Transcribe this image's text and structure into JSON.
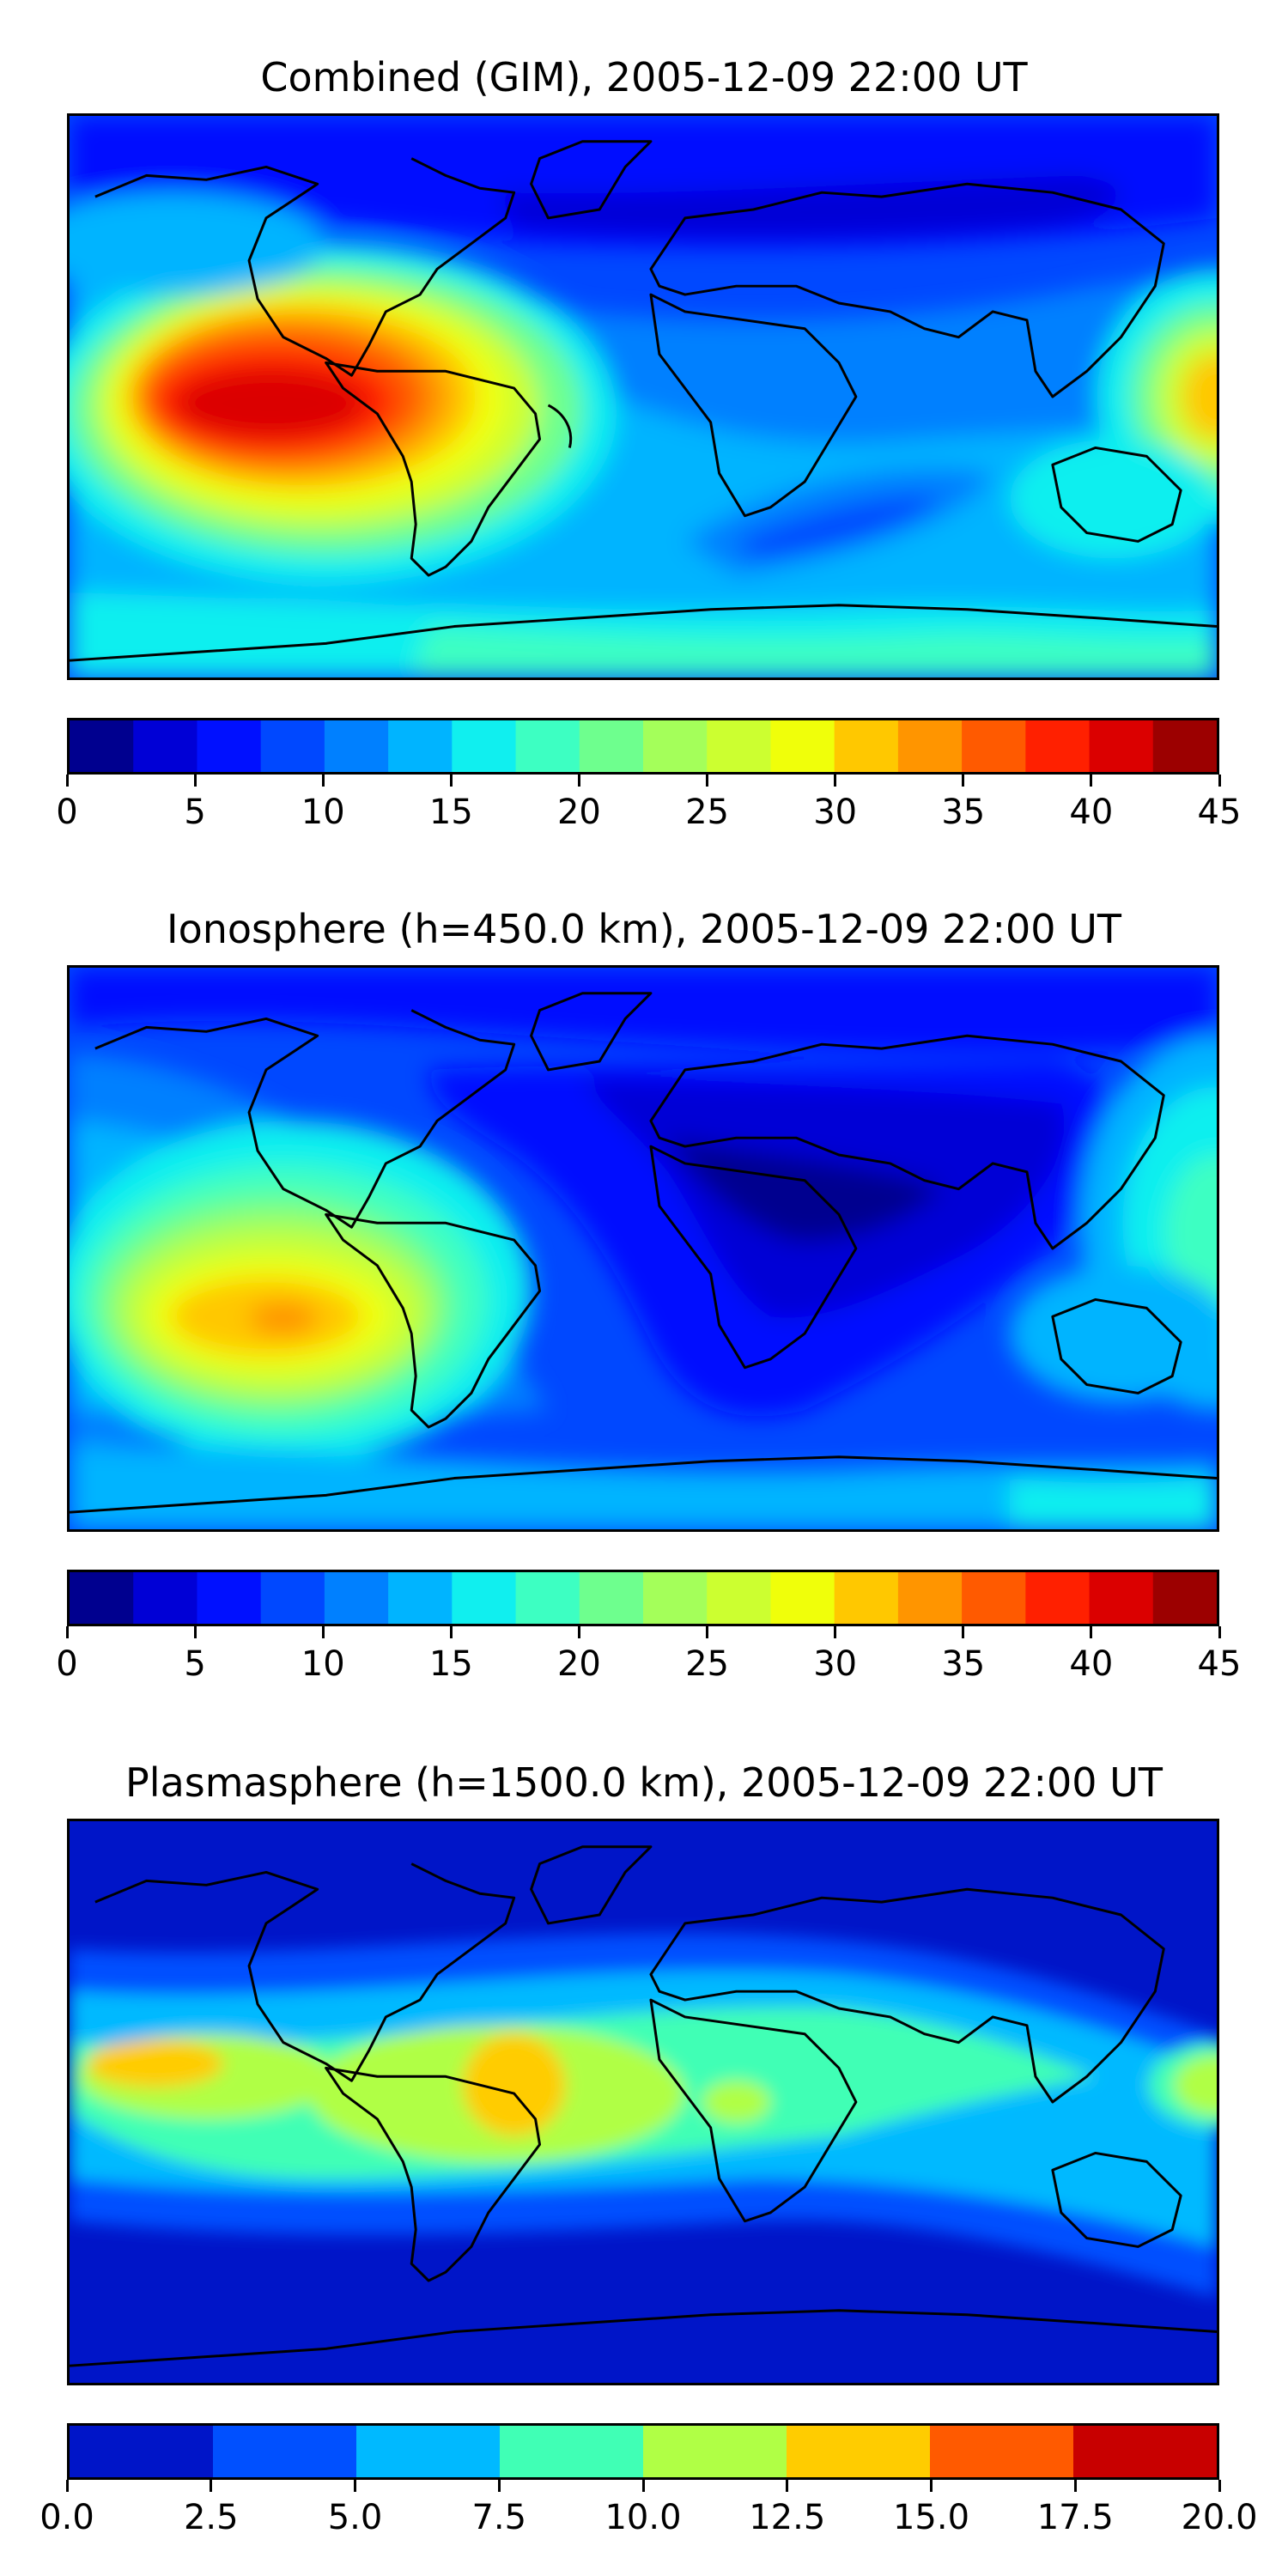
{
  "maps": [
    {
      "title": "Combined (GIM), 2005-12-09 22:00 UT",
      "colorbar": {
        "min": 0,
        "max": 45,
        "step": 2.5,
        "tick_labels": [
          "0",
          "5",
          "10",
          "15",
          "20",
          "25",
          "30",
          "35",
          "40",
          "45"
        ],
        "colors": [
          "#00008f",
          "#0000d6",
          "#0010ff",
          "#0048ff",
          "#0080ff",
          "#00b4ff",
          "#10efef",
          "#3dffc2",
          "#6eff8e",
          "#a4ff5a",
          "#ccff30",
          "#f0ff0a",
          "#ffc800",
          "#ff9500",
          "#ff5a00",
          "#ff2000",
          "#db0000",
          "#9c0000"
        ]
      }
    },
    {
      "title": "Ionosphere  (h=450.0 km), 2005-12-09 22:00 UT",
      "colorbar": {
        "min": 0,
        "max": 45,
        "step": 2.5,
        "tick_labels": [
          "0",
          "5",
          "10",
          "15",
          "20",
          "25",
          "30",
          "35",
          "40",
          "45"
        ],
        "colors": [
          "#00008f",
          "#0000d6",
          "#0010ff",
          "#0048ff",
          "#0080ff",
          "#00b4ff",
          "#10efef",
          "#3dffc2",
          "#6eff8e",
          "#a4ff5a",
          "#ccff30",
          "#f0ff0a",
          "#ffc800",
          "#ff9500",
          "#ff5a00",
          "#ff2000",
          "#db0000",
          "#9c0000"
        ]
      }
    },
    {
      "title": "Plasmasphere (h=1500.0 km), 2005-12-09 22:00 UT",
      "colorbar": {
        "min": 0,
        "max": 20,
        "step": 2.5,
        "tick_labels": [
          "0.0",
          "2.5",
          "5.0",
          "7.5",
          "10.0",
          "12.5",
          "15.0",
          "17.5",
          "20.0"
        ],
        "colors": [
          "#0015c8",
          "#0050ff",
          "#00b9ff",
          "#40ffb5",
          "#b0ff45",
          "#ffcc00",
          "#ff5a00",
          "#c80000"
        ]
      }
    }
  ]
}
